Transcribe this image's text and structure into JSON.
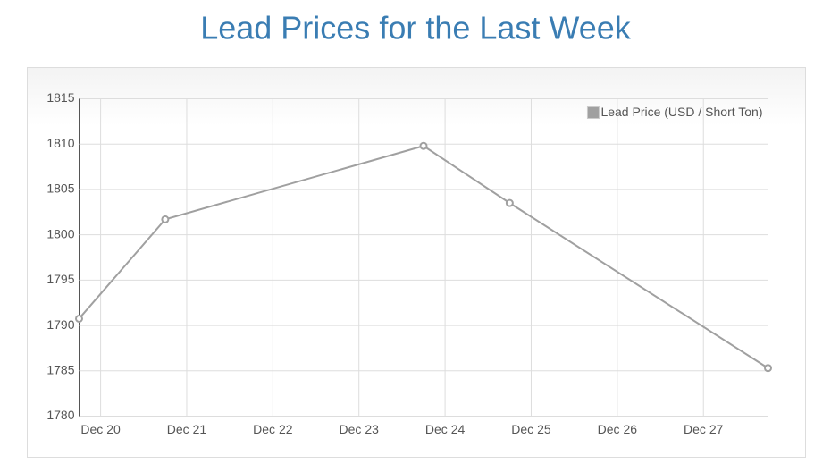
{
  "chart_data": {
    "type": "line",
    "title": "Lead Prices for the Last Week",
    "x": [
      19.75,
      20.75,
      23.75,
      24.75,
      27.75
    ],
    "series": [
      {
        "name": "Lead Price (USD / Short Ton)",
        "color": "#a0a0a0",
        "values": [
          1790.75,
          1801.7,
          1809.8,
          1803.5,
          1785.3
        ]
      }
    ],
    "xlim": [
      19.75,
      27.75
    ],
    "xticks": [
      {
        "value": 20,
        "label": "Dec 20"
      },
      {
        "value": 21,
        "label": "Dec 21"
      },
      {
        "value": 22,
        "label": "Dec 22"
      },
      {
        "value": 23,
        "label": "Dec 23"
      },
      {
        "value": 24,
        "label": "Dec 24"
      },
      {
        "value": 25,
        "label": "Dec 25"
      },
      {
        "value": 26,
        "label": "Dec 26"
      },
      {
        "value": 27,
        "label": "Dec 27"
      }
    ],
    "ylim": [
      1780,
      1815
    ],
    "yticks": [
      1780,
      1785,
      1790,
      1795,
      1800,
      1805,
      1810,
      1815
    ],
    "grid": true,
    "legend": "top-right"
  }
}
